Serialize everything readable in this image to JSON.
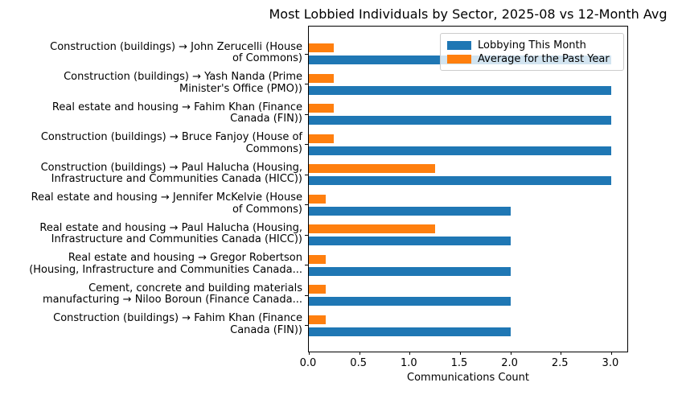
{
  "chart_data": {
    "type": "bar",
    "orientation": "horizontal",
    "title": "Most Lobbied Individuals by Sector, 2025-08 vs 12-Month Avg",
    "xlabel": "Communications Count",
    "ylabel": "",
    "xlim": [
      0,
      3.17
    ],
    "xticks": [
      0.0,
      0.5,
      1.0,
      1.5,
      2.0,
      2.5,
      3.0
    ],
    "xtick_labels": [
      "0.0",
      "0.5",
      "1.0",
      "1.5",
      "2.0",
      "2.5",
      "3.0"
    ],
    "grid": false,
    "legend_position": "upper right",
    "categories": [
      "Construction (buildings) → John Zerucelli (House of Commons)",
      "Construction (buildings) → Yash Nanda (Prime Minister's Office (PMO))",
      "Real estate and housing → Fahim Khan (Finance Canada (FIN))",
      "Construction (buildings) → Bruce Fanjoy (House of Commons)",
      "Construction (buildings) → Paul Halucha (Housing, Infrastructure and Communities Canada (HICC))",
      "Real estate and housing → Jennifer McKelvie (House of Commons)",
      "Real estate and housing → Paul Halucha (Housing, Infrastructure and Communities Canada (HICC))",
      "Real estate and housing → Gregor Robertson (Housing, Infrastructure and Communities Canada...",
      "Cement, concrete and building materials manufacturing → Niloo Boroun (Finance Canada...",
      "Construction (buildings) → Fahim Khan (Finance Canada (FIN))"
    ],
    "category_label_lines": [
      [
        "Construction (buildings) → John Zerucelli (House",
        "of Commons)"
      ],
      [
        "Construction (buildings) → Yash Nanda (Prime",
        "Minister's Office (PMO))"
      ],
      [
        "Real estate and housing → Fahim Khan (Finance",
        "Canada (FIN))"
      ],
      [
        "Construction (buildings) → Bruce Fanjoy (House of",
        "Commons)"
      ],
      [
        "Construction (buildings) → Paul Halucha (Housing,",
        "Infrastructure and Communities Canada (HICC))"
      ],
      [
        "Real estate and housing → Jennifer McKelvie (House",
        "of Commons)"
      ],
      [
        "Real estate and housing → Paul Halucha (Housing,",
        "Infrastructure and Communities Canada (HICC))"
      ],
      [
        "Real estate and housing → Gregor Robertson",
        "(Housing, Infrastructure and Communities Canada..."
      ],
      [
        "Cement, concrete and building materials",
        "manufacturing → Niloo Boroun (Finance Canada..."
      ],
      [
        "Construction (buildings) → Fahim Khan (Finance",
        "Canada (FIN))"
      ]
    ],
    "series": [
      {
        "name": "Lobbying This Month",
        "color": "#1f77b4",
        "values": [
          3,
          3,
          3,
          3,
          3,
          2,
          2,
          2,
          2,
          2
        ]
      },
      {
        "name": "Average for the Past Year",
        "color": "#ff7f0e",
        "values": [
          0.25,
          0.25,
          0.25,
          0.25,
          1.25,
          0.1667,
          1.25,
          0.1667,
          0.1667,
          0.1667
        ]
      }
    ]
  }
}
